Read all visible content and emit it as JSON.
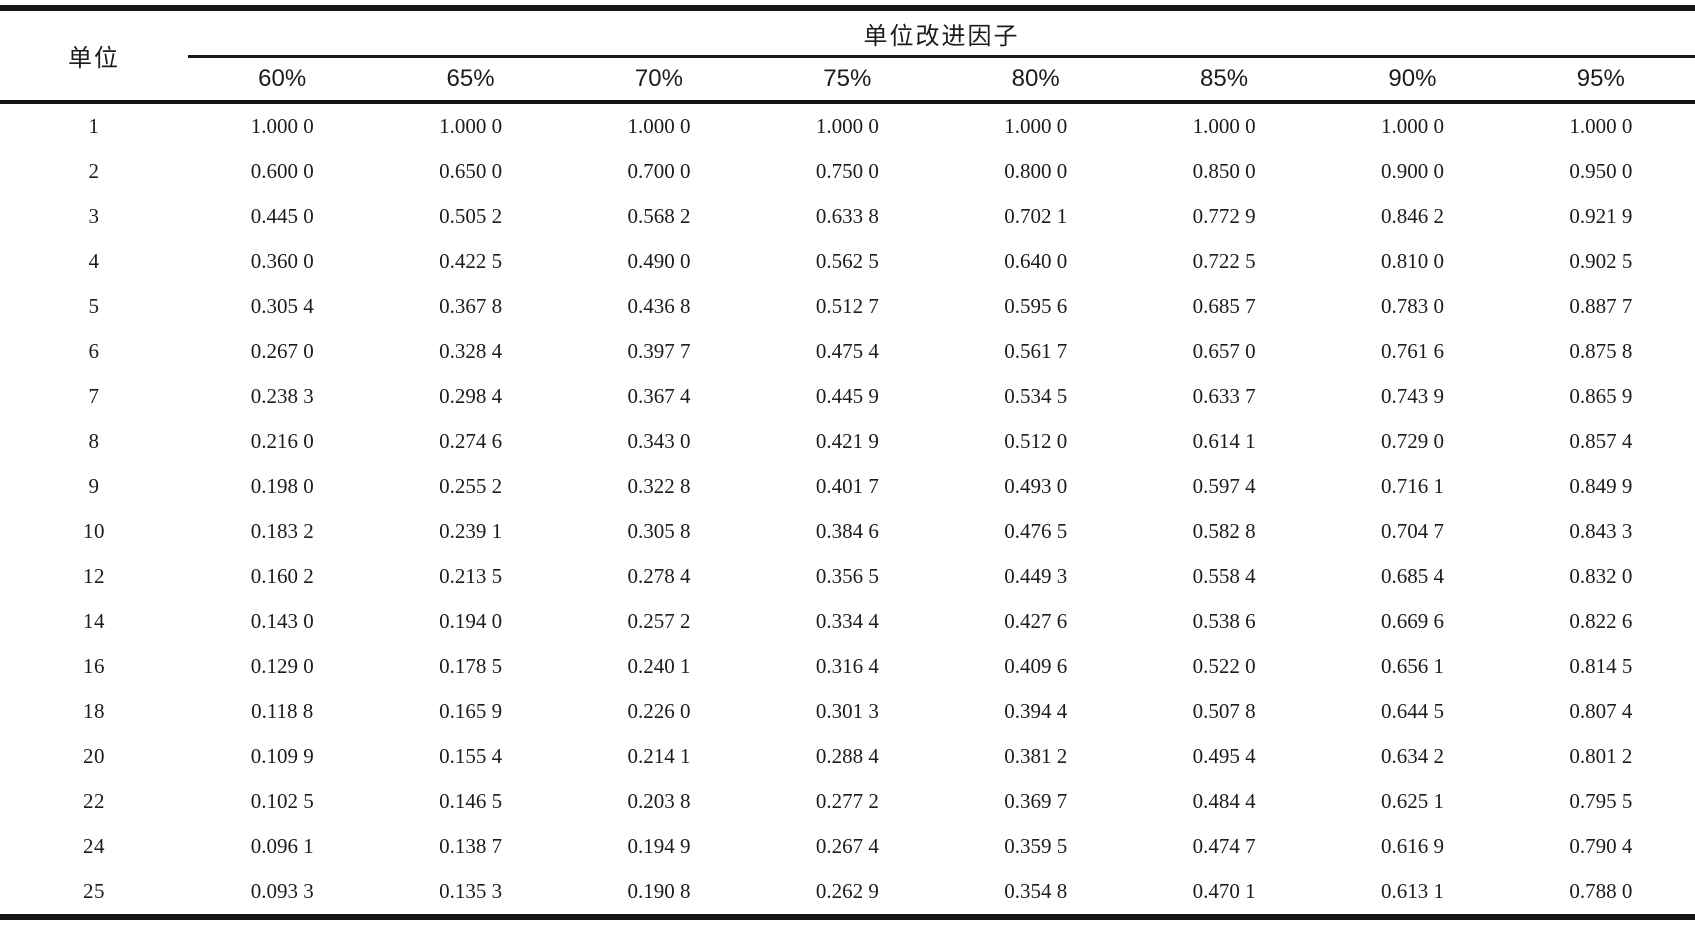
{
  "table": {
    "unit_col_header": "单位",
    "span_header": "单位改进因子",
    "percent_headers": [
      "60%",
      "65%",
      "70%",
      "75%",
      "80%",
      "85%",
      "90%",
      "95%"
    ],
    "rows": [
      {
        "unit": "1",
        "values": [
          "1.000 0",
          "1.000 0",
          "1.000 0",
          "1.000 0",
          "1.000 0",
          "1.000 0",
          "1.000 0",
          "1.000 0"
        ]
      },
      {
        "unit": "2",
        "values": [
          "0.600 0",
          "0.650 0",
          "0.700 0",
          "0.750 0",
          "0.800 0",
          "0.850 0",
          "0.900 0",
          "0.950 0"
        ]
      },
      {
        "unit": "3",
        "values": [
          "0.445 0",
          "0.505 2",
          "0.568 2",
          "0.633 8",
          "0.702 1",
          "0.772 9",
          "0.846 2",
          "0.921 9"
        ]
      },
      {
        "unit": "4",
        "values": [
          "0.360 0",
          "0.422 5",
          "0.490 0",
          "0.562 5",
          "0.640 0",
          "0.722 5",
          "0.810 0",
          "0.902 5"
        ]
      },
      {
        "unit": "5",
        "values": [
          "0.305 4",
          "0.367 8",
          "0.436 8",
          "0.512 7",
          "0.595 6",
          "0.685 7",
          "0.783 0",
          "0.887 7"
        ]
      },
      {
        "unit": "6",
        "values": [
          "0.267 0",
          "0.328 4",
          "0.397 7",
          "0.475 4",
          "0.561 7",
          "0.657 0",
          "0.761 6",
          "0.875 8"
        ]
      },
      {
        "unit": "7",
        "values": [
          "0.238 3",
          "0.298 4",
          "0.367 4",
          "0.445 9",
          "0.534 5",
          "0.633 7",
          "0.743 9",
          "0.865 9"
        ]
      },
      {
        "unit": "8",
        "values": [
          "0.216 0",
          "0.274 6",
          "0.343 0",
          "0.421 9",
          "0.512 0",
          "0.614 1",
          "0.729 0",
          "0.857 4"
        ]
      },
      {
        "unit": "9",
        "values": [
          "0.198 0",
          "0.255 2",
          "0.322 8",
          "0.401 7",
          "0.493 0",
          "0.597 4",
          "0.716 1",
          "0.849 9"
        ]
      },
      {
        "unit": "10",
        "values": [
          "0.183 2",
          "0.239 1",
          "0.305 8",
          "0.384 6",
          "0.476 5",
          "0.582 8",
          "0.704 7",
          "0.843 3"
        ]
      },
      {
        "unit": "12",
        "values": [
          "0.160 2",
          "0.213 5",
          "0.278 4",
          "0.356 5",
          "0.449 3",
          "0.558 4",
          "0.685 4",
          "0.832 0"
        ]
      },
      {
        "unit": "14",
        "values": [
          "0.143 0",
          "0.194 0",
          "0.257 2",
          "0.334 4",
          "0.427 6",
          "0.538 6",
          "0.669 6",
          "0.822 6"
        ]
      },
      {
        "unit": "16",
        "values": [
          "0.129 0",
          "0.178 5",
          "0.240 1",
          "0.316 4",
          "0.409 6",
          "0.522 0",
          "0.656 1",
          "0.814 5"
        ]
      },
      {
        "unit": "18",
        "values": [
          "0.118 8",
          "0.165 9",
          "0.226 0",
          "0.301 3",
          "0.394 4",
          "0.507 8",
          "0.644 5",
          "0.807 4"
        ]
      },
      {
        "unit": "20",
        "values": [
          "0.109 9",
          "0.155 4",
          "0.214 1",
          "0.288 4",
          "0.381 2",
          "0.495 4",
          "0.634 2",
          "0.801 2"
        ]
      },
      {
        "unit": "22",
        "values": [
          "0.102 5",
          "0.146 5",
          "0.203 8",
          "0.277 2",
          "0.369 7",
          "0.484 4",
          "0.625 1",
          "0.795 5"
        ]
      },
      {
        "unit": "24",
        "values": [
          "0.096 1",
          "0.138 7",
          "0.194 9",
          "0.267 4",
          "0.359 5",
          "0.474 7",
          "0.616 9",
          "0.790 4"
        ]
      },
      {
        "unit": "25",
        "values": [
          "0.093 3",
          "0.135 3",
          "0.190 8",
          "0.262 9",
          "0.354 8",
          "0.470 1",
          "0.613 1",
          "0.788 0"
        ]
      }
    ]
  },
  "chart_data": {
    "type": "table",
    "title": "单位改进因子",
    "row_label": "单位",
    "categories": [
      "60%",
      "65%",
      "70%",
      "75%",
      "80%",
      "85%",
      "90%",
      "95%"
    ],
    "units": [
      1,
      2,
      3,
      4,
      5,
      6,
      7,
      8,
      9,
      10,
      12,
      14,
      16,
      18,
      20,
      22,
      24,
      25
    ],
    "series": [
      {
        "name": "60%",
        "values": [
          1.0,
          0.6,
          0.445,
          0.36,
          0.3054,
          0.267,
          0.2383,
          0.216,
          0.198,
          0.1832,
          0.1602,
          0.143,
          0.129,
          0.1188,
          0.1099,
          0.1025,
          0.0961,
          0.0933
        ]
      },
      {
        "name": "65%",
        "values": [
          1.0,
          0.65,
          0.5052,
          0.4225,
          0.3678,
          0.3284,
          0.2984,
          0.2746,
          0.2552,
          0.2391,
          0.2135,
          0.194,
          0.1785,
          0.1659,
          0.1554,
          0.1465,
          0.1387,
          0.1353
        ]
      },
      {
        "name": "70%",
        "values": [
          1.0,
          0.7,
          0.5682,
          0.49,
          0.4368,
          0.3977,
          0.3674,
          0.343,
          0.3228,
          0.3058,
          0.2784,
          0.2572,
          0.2401,
          0.226,
          0.2141,
          0.2038,
          0.1949,
          0.1908
        ]
      },
      {
        "name": "75%",
        "values": [
          1.0,
          0.75,
          0.6338,
          0.5625,
          0.5127,
          0.4754,
          0.4459,
          0.4219,
          0.4017,
          0.3846,
          0.3565,
          0.3344,
          0.3164,
          0.3013,
          0.2884,
          0.2772,
          0.2674,
          0.2629
        ]
      },
      {
        "name": "80%",
        "values": [
          1.0,
          0.8,
          0.7021,
          0.64,
          0.5956,
          0.5617,
          0.5345,
          0.512,
          0.493,
          0.4765,
          0.4493,
          0.4276,
          0.4096,
          0.3944,
          0.3812,
          0.3697,
          0.3595,
          0.3548
        ]
      },
      {
        "name": "85%",
        "values": [
          1.0,
          0.85,
          0.7729,
          0.7225,
          0.6857,
          0.657,
          0.6337,
          0.6141,
          0.5974,
          0.5828,
          0.5584,
          0.5386,
          0.522,
          0.5078,
          0.4954,
          0.4844,
          0.4747,
          0.4701
        ]
      },
      {
        "name": "90%",
        "values": [
          1.0,
          0.9,
          0.8462,
          0.81,
          0.783,
          0.7616,
          0.7439,
          0.729,
          0.7161,
          0.7047,
          0.6854,
          0.6696,
          0.6561,
          0.6445,
          0.6342,
          0.6251,
          0.6169,
          0.6131
        ]
      },
      {
        "name": "95%",
        "values": [
          1.0,
          0.95,
          0.9219,
          0.9025,
          0.8877,
          0.8758,
          0.8659,
          0.8574,
          0.8499,
          0.8433,
          0.832,
          0.8226,
          0.8145,
          0.8074,
          0.8012,
          0.7955,
          0.7904,
          0.788
        ]
      }
    ]
  }
}
